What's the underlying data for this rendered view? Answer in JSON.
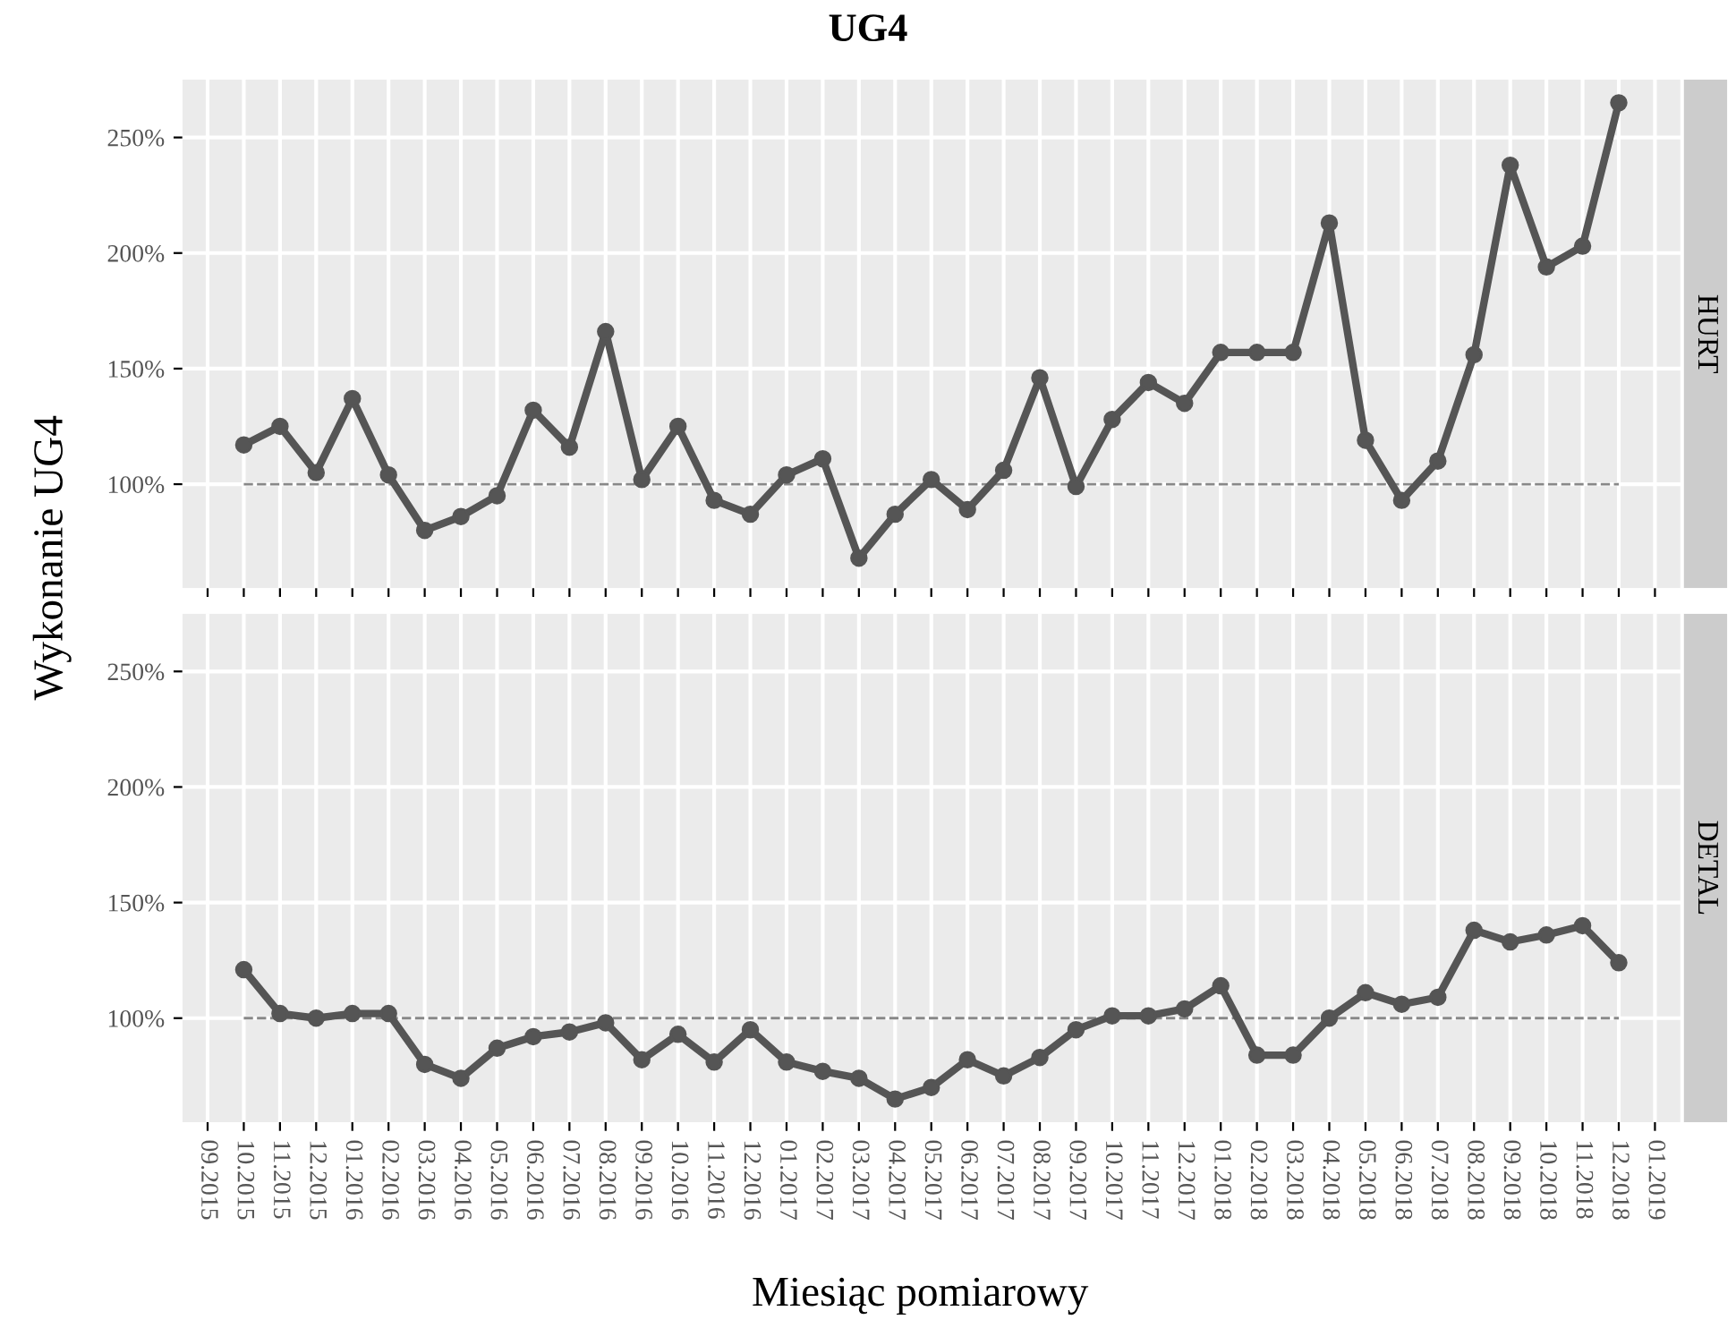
{
  "chart_data": [
    {
      "type": "line",
      "title": "UG4",
      "annotations": [
        "HURT"
      ],
      "ylabel": "Wykonanie UG4",
      "categories": [
        "09.2015",
        "10.2015",
        "11.2015",
        "12.2015",
        "01.2016",
        "02.2016",
        "03.2016",
        "04.2016",
        "05.2016",
        "06.2016",
        "07.2016",
        "08.2016",
        "09.2016",
        "10.2016",
        "11.2016",
        "12.2016",
        "01.2017",
        "02.2017",
        "03.2017",
        "04.2017",
        "05.2017",
        "06.2017",
        "07.2017",
        "08.2017",
        "09.2017",
        "10.2017",
        "11.2017",
        "12.2017",
        "01.2018",
        "02.2018",
        "03.2018",
        "04.2018",
        "05.2018",
        "06.2018",
        "07.2018",
        "08.2018",
        "09.2018",
        "10.2018",
        "11.2018",
        "12.2018",
        "01.2019"
      ],
      "series": [
        {
          "color": "#555555",
          "values": [
            null,
            117,
            125,
            105,
            137,
            104,
            80,
            86,
            95,
            132,
            116,
            166,
            102,
            125,
            93,
            87,
            104,
            111,
            68,
            87,
            102,
            89,
            106,
            146,
            99,
            128,
            144,
            135,
            157,
            157,
            157,
            213,
            119,
            93,
            110,
            156,
            238,
            194,
            203,
            265,
            null
          ]
        }
      ],
      "ylim": [
        55,
        275
      ],
      "yticks": [
        {
          "value": 100,
          "label": "100%"
        },
        {
          "value": 150,
          "label": "150%"
        },
        {
          "value": 200,
          "label": "200%"
        },
        {
          "value": 250,
          "label": "250%"
        }
      ],
      "ref_lines": [
        {
          "axis": "y",
          "value": 100,
          "color": "#888888",
          "line_style": "dashed"
        }
      ],
      "grid": true,
      "marker": "circle",
      "line_style": "solid",
      "tick_labels": "y"
    },
    {
      "type": "line",
      "annotations": [
        "DETAL"
      ],
      "xlabel": "Miesiąc pomiarowy",
      "categories": [
        "09.2015",
        "10.2015",
        "11.2015",
        "12.2015",
        "01.2016",
        "02.2016",
        "03.2016",
        "04.2016",
        "05.2016",
        "06.2016",
        "07.2016",
        "08.2016",
        "09.2016",
        "10.2016",
        "11.2016",
        "12.2016",
        "01.2017",
        "02.2017",
        "03.2017",
        "04.2017",
        "05.2017",
        "06.2017",
        "07.2017",
        "08.2017",
        "09.2017",
        "10.2017",
        "11.2017",
        "12.2017",
        "01.2018",
        "02.2018",
        "03.2018",
        "04.2018",
        "05.2018",
        "06.2018",
        "07.2018",
        "08.2018",
        "09.2018",
        "10.2018",
        "11.2018",
        "12.2018",
        "01.2019"
      ],
      "series": [
        {
          "color": "#555555",
          "values": [
            null,
            121,
            102,
            100,
            102,
            102,
            80,
            74,
            87,
            92,
            94,
            98,
            82,
            93,
            81,
            95,
            81,
            77,
            74,
            65,
            70,
            82,
            75,
            83,
            95,
            101,
            101,
            104,
            114,
            84,
            84,
            100,
            111,
            106,
            109,
            138,
            133,
            136,
            140,
            124,
            null
          ]
        }
      ],
      "ylim": [
        55,
        275
      ],
      "yticks": [
        {
          "value": 100,
          "label": "100%"
        },
        {
          "value": 150,
          "label": "150%"
        },
        {
          "value": 200,
          "label": "200%"
        },
        {
          "value": 250,
          "label": "250%"
        }
      ],
      "ref_lines": [
        {
          "axis": "y",
          "value": 100,
          "color": "#888888",
          "line_style": "dashed"
        }
      ],
      "grid": true,
      "marker": "circle",
      "line_style": "solid"
    }
  ]
}
